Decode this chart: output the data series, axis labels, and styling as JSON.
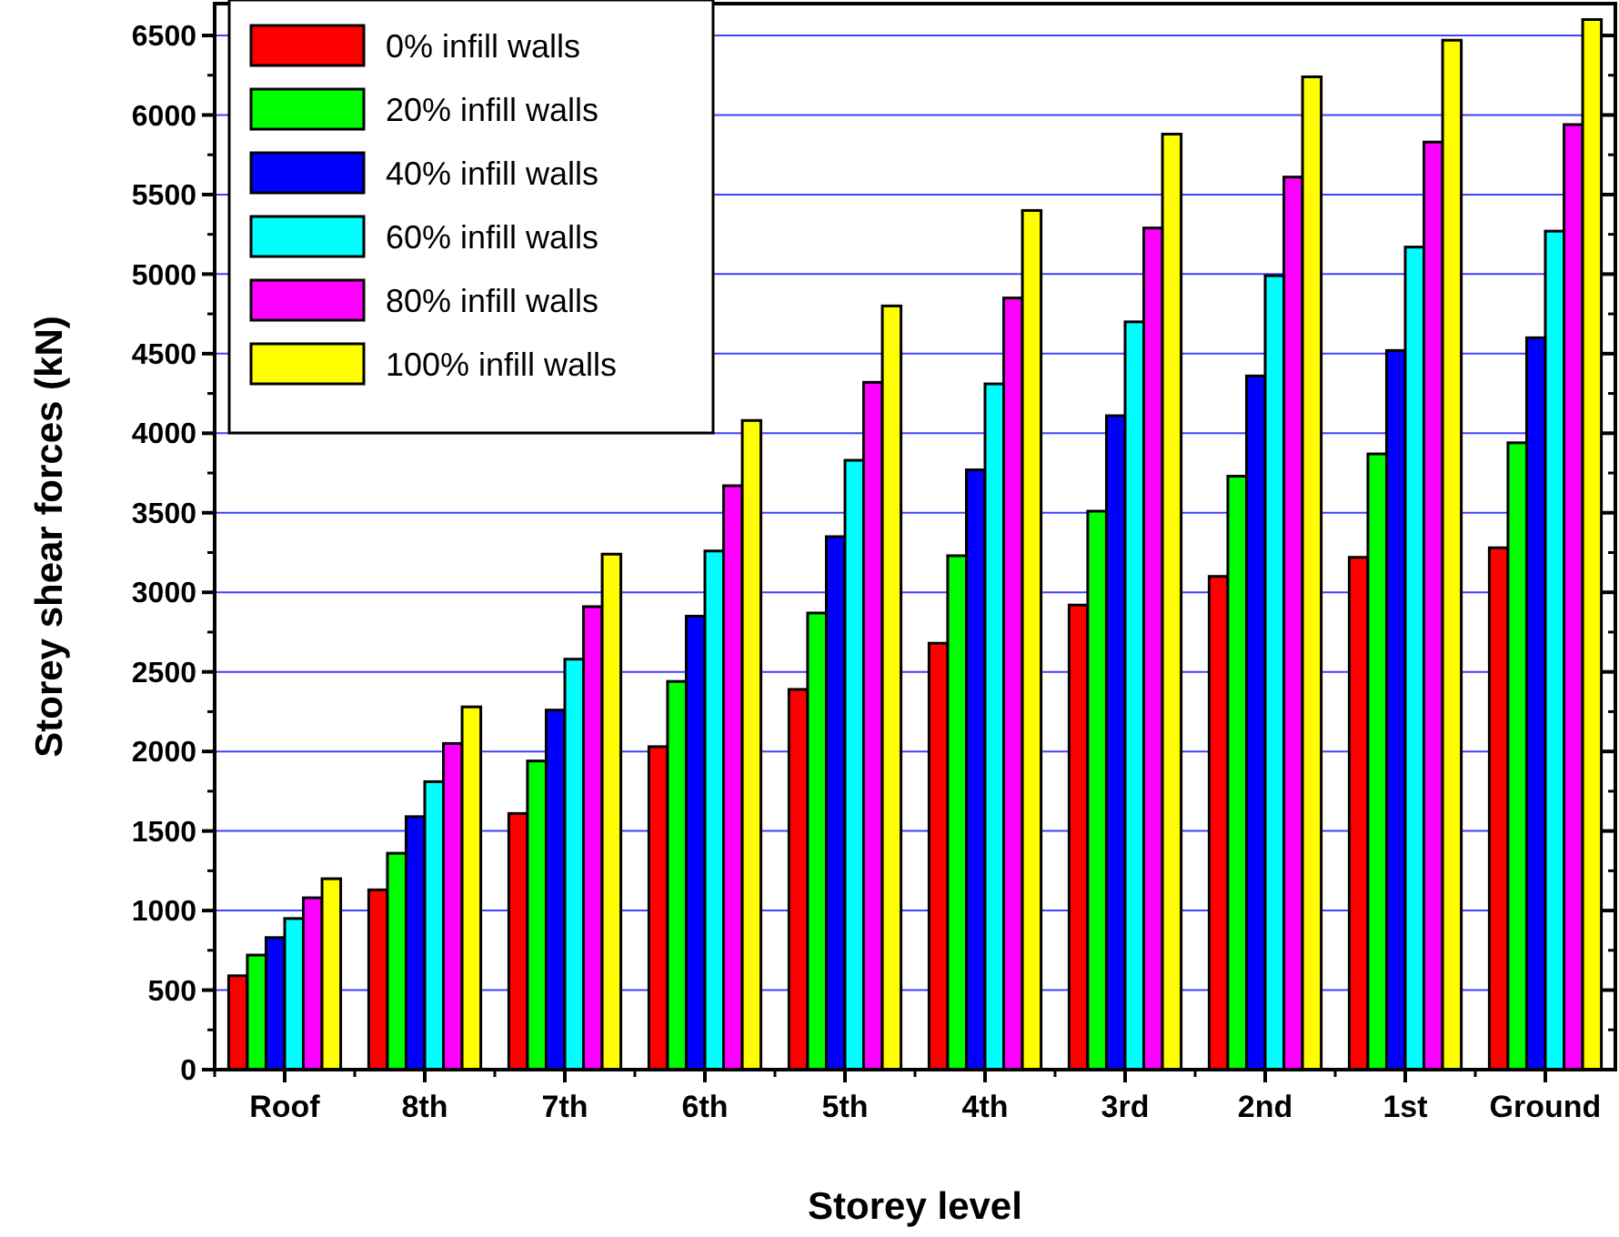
{
  "chart_data": {
    "type": "bar",
    "xlabel": "Storey level",
    "ylabel": "Storey shear forces (kN)",
    "categories": [
      "Roof",
      "8th",
      "7th",
      "6th",
      "5th",
      "4th",
      "3rd",
      "2nd",
      "1st",
      "Ground"
    ],
    "series": [
      {
        "name": "0% infill walls",
        "color": "#ff0000",
        "values": [
          590,
          1130,
          1610,
          2030,
          2390,
          2680,
          2920,
          3100,
          3220,
          3280
        ]
      },
      {
        "name": "20% infill walls",
        "color": "#00ff00",
        "values": [
          720,
          1360,
          1940,
          2440,
          2870,
          3230,
          3510,
          3730,
          3870,
          3940
        ]
      },
      {
        "name": "40% infill walls",
        "color": "#0000ff",
        "values": [
          830,
          1590,
          2260,
          2850,
          3350,
          3770,
          4110,
          4360,
          4520,
          4600
        ]
      },
      {
        "name": "60% infill walls",
        "color": "#00ffff",
        "values": [
          950,
          1810,
          2580,
          3260,
          3830,
          4310,
          4700,
          4990,
          5170,
          5270
        ]
      },
      {
        "name": "80% infill walls",
        "color": "#ff00ff",
        "values": [
          1080,
          2050,
          2910,
          3670,
          4320,
          4850,
          5290,
          5610,
          5830,
          5940
        ]
      },
      {
        "name": "100% infill walls",
        "color": "#ffff00",
        "values": [
          1200,
          2280,
          3240,
          4080,
          4800,
          5400,
          5880,
          6240,
          6470,
          6600
        ]
      }
    ],
    "ylim": [
      0,
      6700
    ],
    "yticks": [
      0,
      500,
      1000,
      1500,
      2000,
      2500,
      3000,
      3500,
      4000,
      4500,
      5000,
      5500,
      6000,
      6500
    ],
    "grid": "y",
    "legend": "top left"
  }
}
